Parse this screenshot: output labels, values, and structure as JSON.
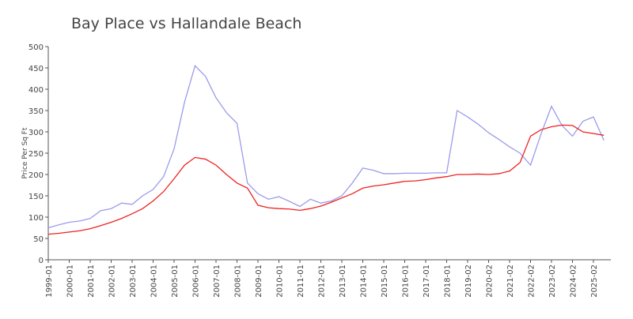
{
  "chart_data": {
    "type": "line",
    "title": "Bay Place vs Hallandale Beach",
    "y_label": "Price Per Sq Ft",
    "categories": [
      "1999-01",
      null,
      "2000-01",
      null,
      "2001-01",
      null,
      "2002-01",
      null,
      "2003-01",
      null,
      "2004-01",
      null,
      "2005-01",
      null,
      "2006-01",
      null,
      "2007-01",
      null,
      "2008-01",
      null,
      "2009-01",
      null,
      "2010-01",
      null,
      "2011-01",
      null,
      "2012-01",
      null,
      "2013-01",
      null,
      "2014-01",
      null,
      "2015-01",
      null,
      "2016-01",
      null,
      "2017-01",
      null,
      "2018-01",
      null,
      "2019-02",
      null,
      "2020-02",
      null,
      "2021-02",
      null,
      "2022-02",
      null,
      "2023-02",
      null,
      "2024-02",
      null,
      "2025-02",
      null
    ],
    "series": [
      {
        "color": "#9b9bec",
        "values": [
          75,
          82,
          88,
          91,
          97,
          115,
          120,
          133,
          130,
          150,
          165,
          195,
          260,
          370,
          455,
          430,
          380,
          345,
          320,
          180,
          155,
          142,
          148,
          137,
          125,
          142,
          133,
          138,
          150,
          180,
          215,
          210,
          202,
          202,
          203,
          203,
          203,
          204,
          204,
          350,
          335,
          318,
          298,
          282,
          265,
          250,
          222,
          295,
          360,
          315,
          290,
          325,
          335,
          280
        ]
      },
      {
        "color": "#ee2222",
        "values": [
          60,
          62,
          65,
          68,
          73,
          80,
          88,
          97,
          108,
          120,
          138,
          160,
          190,
          222,
          240,
          236,
          222,
          200,
          180,
          168,
          128,
          122,
          120,
          119,
          116,
          120,
          126,
          135,
          145,
          155,
          168,
          173,
          176,
          180,
          184,
          185,
          188,
          192,
          195,
          200,
          200,
          201,
          200,
          202,
          208,
          228,
          290,
          305,
          312,
          316,
          315,
          300,
          296,
          292
        ]
      }
    ],
    "ylim": [
      0,
      500
    ],
    "yticks": [
      0,
      50,
      100,
      150,
      200,
      250,
      300,
      350,
      400,
      450,
      500
    ]
  }
}
